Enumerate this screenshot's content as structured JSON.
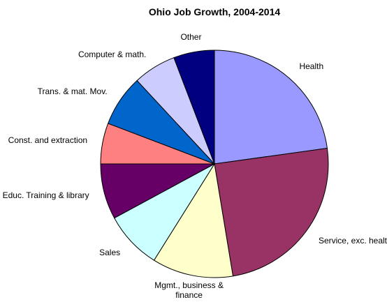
{
  "chart_data": {
    "type": "pie",
    "title": "Ohio Job Growth, 2004-2014",
    "categories": [
      "Health",
      "Service, exc. health",
      "Mgmt., business & finance",
      "Sales",
      "Educ. Training & library",
      "Const. and extraction",
      "Trans. & mat. Mov.",
      "Computer & math.",
      "Other"
    ],
    "values": [
      22.8,
      24.6,
      11.5,
      8.2,
      7.9,
      5.8,
      7.3,
      6.1,
      5.8
    ],
    "colors": [
      "#9999ff",
      "#993366",
      "#ffffcc",
      "#ccffff",
      "#660066",
      "#ff8080",
      "#0066cc",
      "#ccccff",
      "#000080"
    ]
  }
}
